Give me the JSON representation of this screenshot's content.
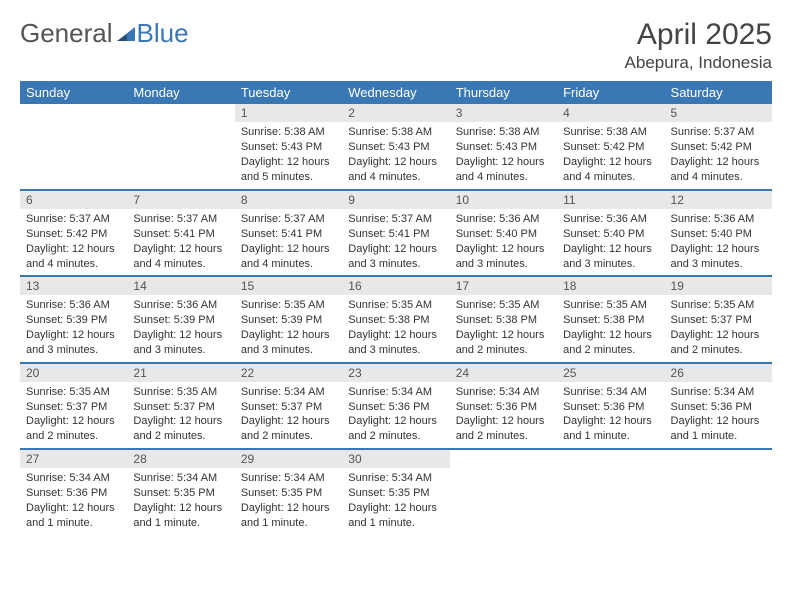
{
  "brand": {
    "part1": "General",
    "part2": "Blue"
  },
  "colors": {
    "header_bg": "#3a78b5",
    "header_text": "#ffffff",
    "daynum_bg": "#e8e8e8",
    "row_border": "#3a78b5",
    "body_text": "#333333",
    "title_text": "#444444"
  },
  "title": {
    "month": "April 2025",
    "location": "Abepura, Indonesia"
  },
  "weekdays": [
    "Sunday",
    "Monday",
    "Tuesday",
    "Wednesday",
    "Thursday",
    "Friday",
    "Saturday"
  ],
  "weeks": [
    [
      null,
      null,
      {
        "n": "1",
        "sr": "5:38 AM",
        "ss": "5:43 PM",
        "dl": "12 hours and 5 minutes."
      },
      {
        "n": "2",
        "sr": "5:38 AM",
        "ss": "5:43 PM",
        "dl": "12 hours and 4 minutes."
      },
      {
        "n": "3",
        "sr": "5:38 AM",
        "ss": "5:43 PM",
        "dl": "12 hours and 4 minutes."
      },
      {
        "n": "4",
        "sr": "5:38 AM",
        "ss": "5:42 PM",
        "dl": "12 hours and 4 minutes."
      },
      {
        "n": "5",
        "sr": "5:37 AM",
        "ss": "5:42 PM",
        "dl": "12 hours and 4 minutes."
      }
    ],
    [
      {
        "n": "6",
        "sr": "5:37 AM",
        "ss": "5:42 PM",
        "dl": "12 hours and 4 minutes."
      },
      {
        "n": "7",
        "sr": "5:37 AM",
        "ss": "5:41 PM",
        "dl": "12 hours and 4 minutes."
      },
      {
        "n": "8",
        "sr": "5:37 AM",
        "ss": "5:41 PM",
        "dl": "12 hours and 4 minutes."
      },
      {
        "n": "9",
        "sr": "5:37 AM",
        "ss": "5:41 PM",
        "dl": "12 hours and 3 minutes."
      },
      {
        "n": "10",
        "sr": "5:36 AM",
        "ss": "5:40 PM",
        "dl": "12 hours and 3 minutes."
      },
      {
        "n": "11",
        "sr": "5:36 AM",
        "ss": "5:40 PM",
        "dl": "12 hours and 3 minutes."
      },
      {
        "n": "12",
        "sr": "5:36 AM",
        "ss": "5:40 PM",
        "dl": "12 hours and 3 minutes."
      }
    ],
    [
      {
        "n": "13",
        "sr": "5:36 AM",
        "ss": "5:39 PM",
        "dl": "12 hours and 3 minutes."
      },
      {
        "n": "14",
        "sr": "5:36 AM",
        "ss": "5:39 PM",
        "dl": "12 hours and 3 minutes."
      },
      {
        "n": "15",
        "sr": "5:35 AM",
        "ss": "5:39 PM",
        "dl": "12 hours and 3 minutes."
      },
      {
        "n": "16",
        "sr": "5:35 AM",
        "ss": "5:38 PM",
        "dl": "12 hours and 3 minutes."
      },
      {
        "n": "17",
        "sr": "5:35 AM",
        "ss": "5:38 PM",
        "dl": "12 hours and 2 minutes."
      },
      {
        "n": "18",
        "sr": "5:35 AM",
        "ss": "5:38 PM",
        "dl": "12 hours and 2 minutes."
      },
      {
        "n": "19",
        "sr": "5:35 AM",
        "ss": "5:37 PM",
        "dl": "12 hours and 2 minutes."
      }
    ],
    [
      {
        "n": "20",
        "sr": "5:35 AM",
        "ss": "5:37 PM",
        "dl": "12 hours and 2 minutes."
      },
      {
        "n": "21",
        "sr": "5:35 AM",
        "ss": "5:37 PM",
        "dl": "12 hours and 2 minutes."
      },
      {
        "n": "22",
        "sr": "5:34 AM",
        "ss": "5:37 PM",
        "dl": "12 hours and 2 minutes."
      },
      {
        "n": "23",
        "sr": "5:34 AM",
        "ss": "5:36 PM",
        "dl": "12 hours and 2 minutes."
      },
      {
        "n": "24",
        "sr": "5:34 AM",
        "ss": "5:36 PM",
        "dl": "12 hours and 2 minutes."
      },
      {
        "n": "25",
        "sr": "5:34 AM",
        "ss": "5:36 PM",
        "dl": "12 hours and 1 minute."
      },
      {
        "n": "26",
        "sr": "5:34 AM",
        "ss": "5:36 PM",
        "dl": "12 hours and 1 minute."
      }
    ],
    [
      {
        "n": "27",
        "sr": "5:34 AM",
        "ss": "5:36 PM",
        "dl": "12 hours and 1 minute."
      },
      {
        "n": "28",
        "sr": "5:34 AM",
        "ss": "5:35 PM",
        "dl": "12 hours and 1 minute."
      },
      {
        "n": "29",
        "sr": "5:34 AM",
        "ss": "5:35 PM",
        "dl": "12 hours and 1 minute."
      },
      {
        "n": "30",
        "sr": "5:34 AM",
        "ss": "5:35 PM",
        "dl": "12 hours and 1 minute."
      },
      null,
      null,
      null
    ]
  ],
  "labels": {
    "sunrise": "Sunrise:",
    "sunset": "Sunset:",
    "daylight": "Daylight:"
  }
}
